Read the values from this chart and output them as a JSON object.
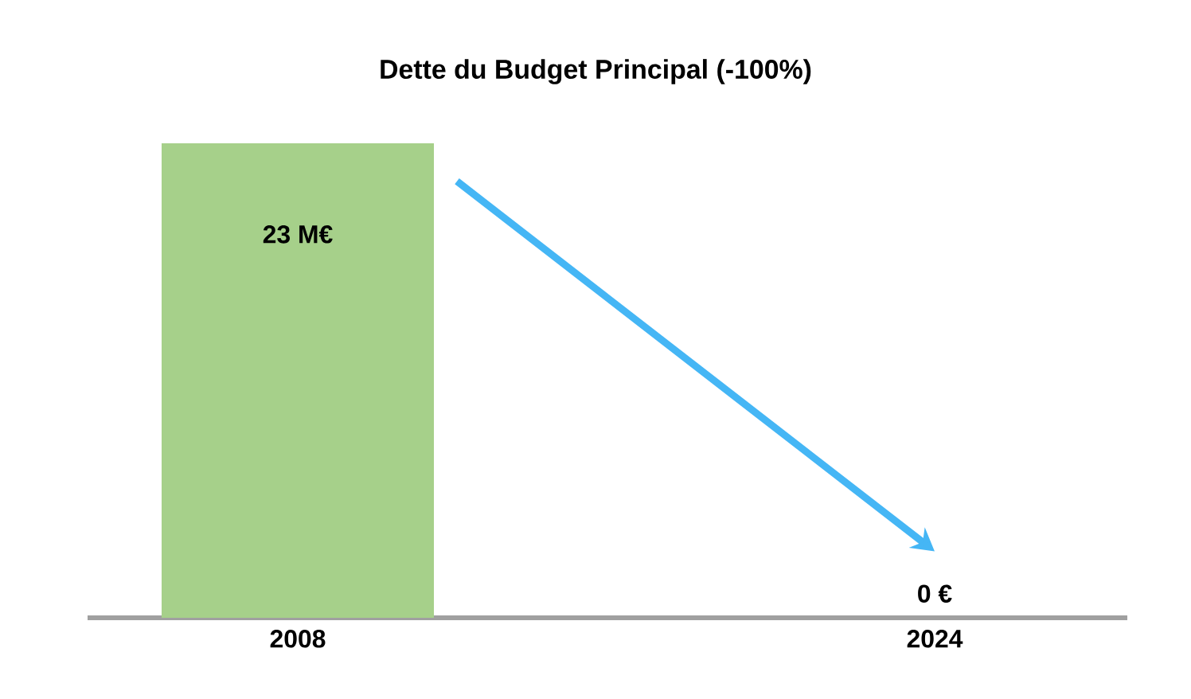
{
  "chart_data": {
    "type": "bar",
    "title": "Dette du Budget Principal (-100%)",
    "categories": [
      "2008",
      "2024"
    ],
    "values": [
      23,
      0
    ],
    "value_labels": [
      "23 M€",
      "0 €"
    ],
    "color": "#a6d08a"
  }
}
